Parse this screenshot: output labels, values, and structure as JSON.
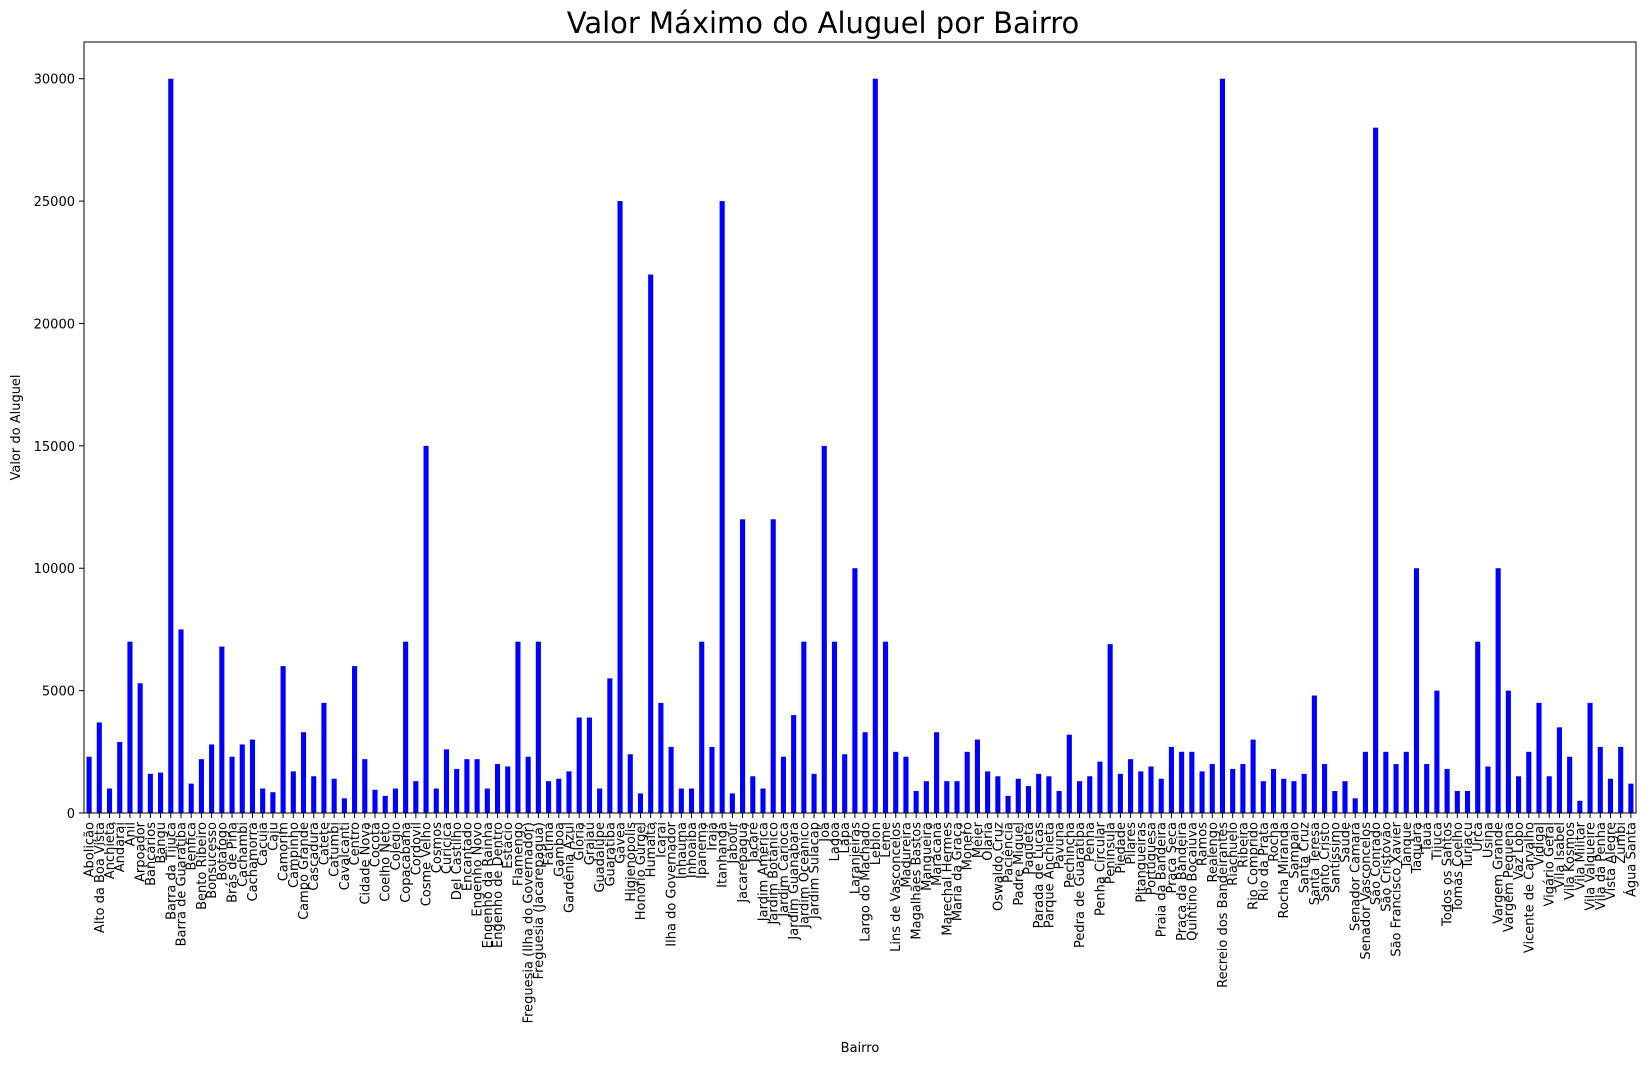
{
  "chart_data": {
    "type": "bar",
    "title": "Valor Máximo do Aluguel por Bairro",
    "xlabel": "Bairro",
    "ylabel": "Valor do Aluguel",
    "ylim": [
      0,
      31500
    ],
    "yticks": [
      0,
      5000,
      10000,
      15000,
      20000,
      25000,
      30000
    ],
    "grid": false,
    "bar_color": "#0000ff",
    "categories": [
      "Abolição",
      "Alto da Boa Vista",
      "Anchieta",
      "Andaraí",
      "Anil",
      "Arpoador",
      "Bancários",
      "Bangu",
      "Barra da Tijuca",
      "Barra de Guaratiba",
      "Benfica",
      "Bento Ribeiro",
      "Bonsucesso",
      "Botafogo",
      "Brás de Pina",
      "Cachambi",
      "Cachamorra",
      "Cacuia",
      "Caju",
      "Camorim",
      "Campinho",
      "Campo Grande",
      "Cascadura",
      "Catete",
      "Catumbi",
      "Cavalcanti",
      "Centro",
      "Cidade Nova",
      "Cocotá",
      "Coelho Neto",
      "Colégio",
      "Copacabana",
      "Cordovil",
      "Cosme Velho",
      "Cosmos",
      "Curicica",
      "Del Castilho",
      "Encantado",
      "Engenho Novo",
      "Engenho da Rainha",
      "Engenho de Dentro",
      "Estácio",
      "Flamengo",
      "Freguesia (Ilha do Governador)",
      "Freguesia (Jacarepaguá)",
      "Fátima",
      "Gamboa",
      "Gardênia Azul",
      "Glória",
      "Grajaú",
      "Guadalupe",
      "Guaratiba",
      "Gávea",
      "Higienópolis",
      "Honório Gurgel",
      "Humaitá",
      "Icaraí",
      "Ilha do Governador",
      "Inhaúma",
      "Inhoaíba",
      "Ipanema",
      "Irajá",
      "Itanhangá",
      "Jabour",
      "Jacarepaguá",
      "Jacaré",
      "Jardim América",
      "Jardim Botânico",
      "Jardim Carioca",
      "Jardim Guanabara",
      "Jardim Oceânico",
      "Jardim Sulacap",
      "Joá",
      "Lagoa",
      "Lapa",
      "Laranjeiras",
      "Largo do Machado",
      "Leblon",
      "Leme",
      "Lins de Vasconcelos",
      "Madureira",
      "Magalhães Bastos",
      "Mangueira",
      "Maracanã",
      "Marechal Hermes",
      "Maria da Graça",
      "Moneró",
      "Méier",
      "Olaria",
      "Oswaldo Cruz",
      "Paciência",
      "Padre Miguel",
      "Paquetá",
      "Parada de Lucas",
      "Parque Anchieta",
      "Pavuna",
      "Pechincha",
      "Pedra de Guaratiba",
      "Penha",
      "Penha Circular",
      "Península",
      "Piedade",
      "Pilares",
      "Pitangueiras",
      "Portuguesa",
      "Praia da Bandeira",
      "Praça Seca",
      "Praça da Bandeira",
      "Quintino Bocaiúva",
      "Ramos",
      "Realengo",
      "Recreio dos Bandeirantes",
      "Riachuelo",
      "Ribeira",
      "Rio Comprido",
      "Rio da Prata",
      "Rocha",
      "Rocha Miranda",
      "Sampaio",
      "Santa Cruz",
      "Santa Teresa",
      "Santo Cristo",
      "Santíssimo",
      "Saúde",
      "Senador Camará",
      "Senador Vasconcelos",
      "São Conrado",
      "São Cristóvão",
      "São Francisco Xavier",
      "Tanque",
      "Taquara",
      "Tauá",
      "Tijuca",
      "Todos os Santos",
      "Tomás Coelho",
      "Turiaçu",
      "Urca",
      "Usina",
      "Vargem Grande",
      "Vargem Pequena",
      "Vaz Lobo",
      "Vicente de Carvalho",
      "Vidigal",
      "Vigário Geral",
      "Vila Isabel",
      "Vila Kosmos",
      "Vila Militar",
      "Vila Valqueire",
      "Vila da Penha",
      "Vista Alegre",
      "Zumbi",
      "Água Santa"
    ],
    "values": [
      2300,
      3700,
      1000,
      2900,
      7000,
      5300,
      1600,
      1650,
      30000,
      7500,
      1200,
      2200,
      2800,
      6800,
      2300,
      2800,
      3000,
      1000,
      850,
      6000,
      1700,
      3300,
      1500,
      4500,
      1400,
      600,
      6000,
      2200,
      950,
      700,
      1000,
      7000,
      1300,
      15000,
      1000,
      2600,
      1800,
      2200,
      2200,
      1000,
      2000,
      1900,
      7000,
      2300,
      7000,
      1300,
      1400,
      1700,
      3900,
      3900,
      1000,
      5500,
      25000,
      2400,
      800,
      22000,
      4500,
      2700,
      1000,
      1000,
      7000,
      2700,
      25000,
      800,
      12000,
      1500,
      1000,
      12000,
      2300,
      4000,
      7000,
      1600,
      15000,
      7000,
      2400,
      10000,
      3300,
      30000,
      7000,
      2500,
      2300,
      900,
      1300,
      3300,
      1300,
      1300,
      2500,
      3000,
      1700,
      1500,
      700,
      1400,
      1100,
      1600,
      1500,
      900,
      3200,
      1300,
      1500,
      2100,
      6900,
      1600,
      2200,
      1700,
      1900,
      1400,
      2700,
      2500,
      2500,
      1700,
      2000,
      30000,
      1800,
      2000,
      3000,
      1300,
      1800,
      1400,
      1300,
      1600,
      4800,
      2000,
      900,
      1300,
      600,
      2500,
      28000,
      2500,
      2000,
      2500,
      10000,
      2000,
      5000,
      1800,
      900,
      900,
      7000,
      1900,
      10000,
      5000,
      1500,
      2500,
      4500,
      1500,
      3500,
      2300,
      500,
      4500,
      2700,
      1400,
      2700,
      1200
    ]
  }
}
